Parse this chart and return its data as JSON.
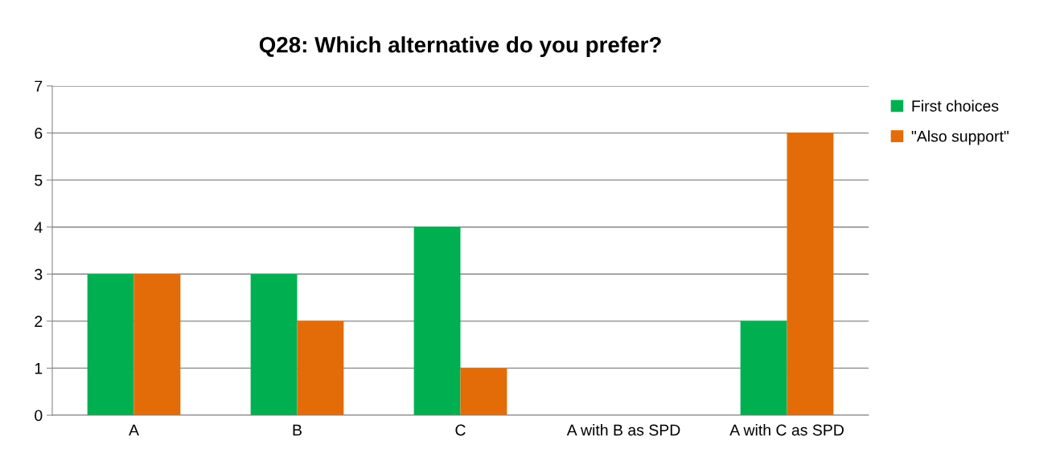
{
  "chart_data": {
    "type": "bar",
    "title": "Q28: Which alternative do you prefer?",
    "categories": [
      "A",
      "B",
      "C",
      "A with B as SPD",
      "A with C as SPD"
    ],
    "series": [
      {
        "name": "First choices",
        "color": "#00b050",
        "values": [
          3,
          3,
          4,
          0,
          2
        ]
      },
      {
        "name": "\"Also support\"",
        "color": "#e36c09",
        "values": [
          3,
          2,
          1,
          0,
          6
        ]
      }
    ],
    "ylim": [
      0,
      7
    ],
    "yticks": [
      0,
      1,
      2,
      3,
      4,
      5,
      6,
      7
    ],
    "grid": "y",
    "legend": "right"
  }
}
